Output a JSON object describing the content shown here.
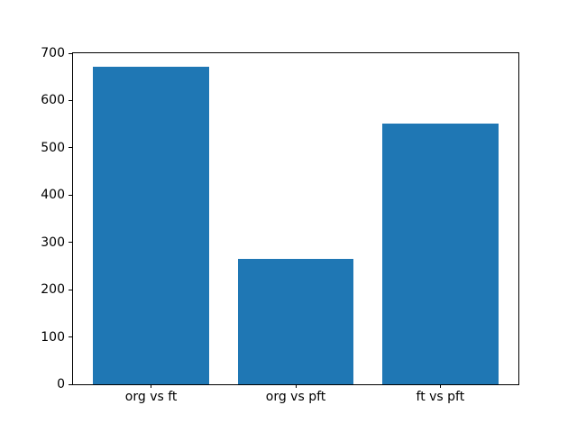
{
  "chart_data": {
    "type": "bar",
    "categories": [
      "org vs ft",
      "org vs pft",
      "ft vs pft"
    ],
    "values": [
      672,
      265,
      552
    ],
    "title": "",
    "xlabel": "",
    "ylabel": "",
    "ylim": [
      0,
      700
    ],
    "yticks": [
      0,
      100,
      200,
      300,
      400,
      500,
      600,
      700
    ],
    "bar_color": "#1f77b4",
    "bar_width_ratio": 0.8,
    "grid": false,
    "legend": "none"
  },
  "colors": {
    "background": "#ffffff",
    "spine": "#000000",
    "tick_text": "#000000",
    "bar": "#1f77b4"
  }
}
